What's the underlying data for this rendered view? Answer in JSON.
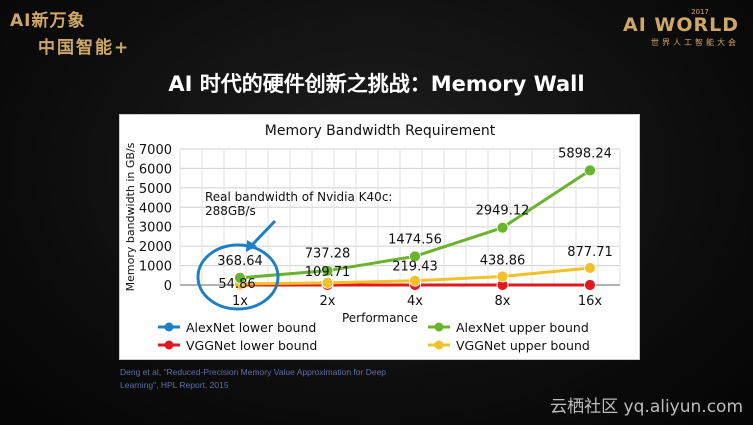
{
  "branding": {
    "left_line1": "AI新万象",
    "left_line2": "中国智能+",
    "right_year": "2017",
    "right_main": "AI WORLD",
    "right_sub": "世界人工智能大会"
  },
  "slide": {
    "title": "AI 时代的硬件创新之挑战：Memory Wall"
  },
  "chart_data": {
    "type": "line",
    "title": "Memory Bandwidth Requirement",
    "xlabel": "Performance",
    "ylabel": "Memory bandwidth in GB/s",
    "categories": [
      "1x",
      "2x",
      "4x",
      "8x",
      "16x"
    ],
    "ylim": [
      0,
      7000
    ],
    "yticks": [
      "0",
      "1000",
      "2000",
      "3000",
      "4000",
      "5000",
      "6000",
      "7000"
    ],
    "grid": true,
    "legend_position": "bottom",
    "series": [
      {
        "name": "AlexNet lower bound",
        "color": "#1f7fc4",
        "values": [
          0,
          0,
          0,
          0,
          0
        ],
        "labels": []
      },
      {
        "name": "AlexNet upper bound",
        "color": "#6ab42d",
        "values": [
          368.64,
          737.28,
          1474.56,
          2949.12,
          5898.24
        ],
        "labels": [
          "368.64",
          "737.28",
          "1474.56",
          "2949.12",
          "5898.24"
        ]
      },
      {
        "name": "VGGNet lower bound",
        "color": "#e0191e",
        "values": [
          0,
          0,
          0,
          0,
          0
        ],
        "labels": []
      },
      {
        "name": "VGGNet upper bound",
        "color": "#f2c02a",
        "values": [
          54.86,
          109.71,
          219.43,
          438.86,
          877.71
        ],
        "labels": [
          "54.86",
          "109.71",
          "219.43",
          "438.86",
          "877.71"
        ]
      }
    ],
    "annotation": {
      "line1": "Real bandwidth of Nvidia K40c:",
      "line2": "288GB/s"
    }
  },
  "citation": {
    "line1": "Deng et al, \"Reduced-Precision Memory Value Approximation for Deep",
    "line2": "Learning\", HPL Report, 2015"
  },
  "watermark": "云栖社区 yq.aliyun.com"
}
